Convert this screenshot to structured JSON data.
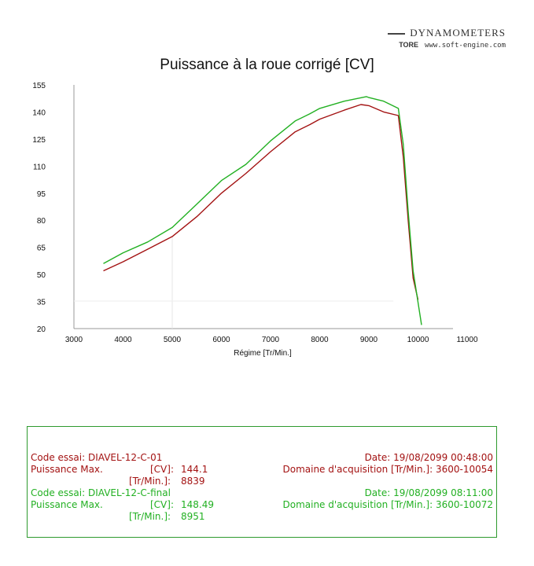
{
  "brand": {
    "name": "DYNAMOMETERS",
    "mark": "TORE",
    "url": "www.soft-engine.com"
  },
  "chart_data": {
    "type": "line",
    "title": "Puissance à la roue corrigé [CV]",
    "xlabel": "Régime [Tr/Min.]",
    "ylabel": "",
    "xlim": [
      3000,
      11000
    ],
    "ylim": [
      20,
      155
    ],
    "xticks": [
      "3000",
      "4000",
      "5000",
      "6000",
      "7000",
      "8000",
      "9000",
      "10000",
      "11000"
    ],
    "yticks": [
      "20",
      "35",
      "50",
      "65",
      "80",
      "95",
      "110",
      "125",
      "140",
      "155"
    ],
    "grid": false,
    "series": [
      {
        "name": "DIAVEL-12-C-01",
        "color": "#a31212",
        "x": [
          3600,
          4000,
          4500,
          5000,
          5500,
          6000,
          6500,
          7000,
          7500,
          7800,
          8000,
          8500,
          8839,
          9000,
          9300,
          9600,
          9700,
          9800,
          9900,
          10000
        ],
        "y": [
          52,
          57,
          64,
          71,
          82,
          95,
          106,
          118,
          129,
          133,
          136,
          141,
          144.1,
          143.5,
          140,
          138,
          115,
          80,
          48,
          36
        ]
      },
      {
        "name": "DIAVEL-12-C-final",
        "color": "#22b022",
        "x": [
          3600,
          4000,
          4500,
          5000,
          5500,
          6000,
          6500,
          7000,
          7500,
          7800,
          8000,
          8500,
          8951,
          9000,
          9300,
          9600,
          9700,
          9800,
          9900,
          10072
        ],
        "y": [
          56,
          62,
          68,
          76,
          89,
          102,
          111,
          124,
          135,
          139,
          142,
          146,
          148.49,
          148,
          146,
          142,
          122,
          85,
          52,
          22
        ]
      }
    ]
  },
  "info": {
    "red": {
      "code_label": "Code essai:",
      "code_value": "DIAVEL-12-C-01",
      "date_label": "Date:",
      "date_value": "19/08/2099 00:48:00",
      "power_label": "Puissance Max.",
      "power_unit": "[CV]:",
      "power_value": "144.1",
      "domain_label": "Domaine d'acquisition [Tr/Min.]:",
      "domain_value": "3600-10054",
      "rpm_unit": "[Tr/Min.]:",
      "rpm_value": "8839"
    },
    "green": {
      "code_label": "Code essai:",
      "code_value": "DIAVEL-12-C-final",
      "date_label": "Date:",
      "date_value": "19/08/2099 08:11:00",
      "power_label": "Puissance Max.",
      "power_unit": "[CV]:",
      "power_value": "148.49",
      "domain_label": "Domaine d'acquisition [Tr/Min.]:",
      "domain_value": "3600-10072",
      "rpm_unit": "[Tr/Min.]:",
      "rpm_value": "8951"
    }
  }
}
